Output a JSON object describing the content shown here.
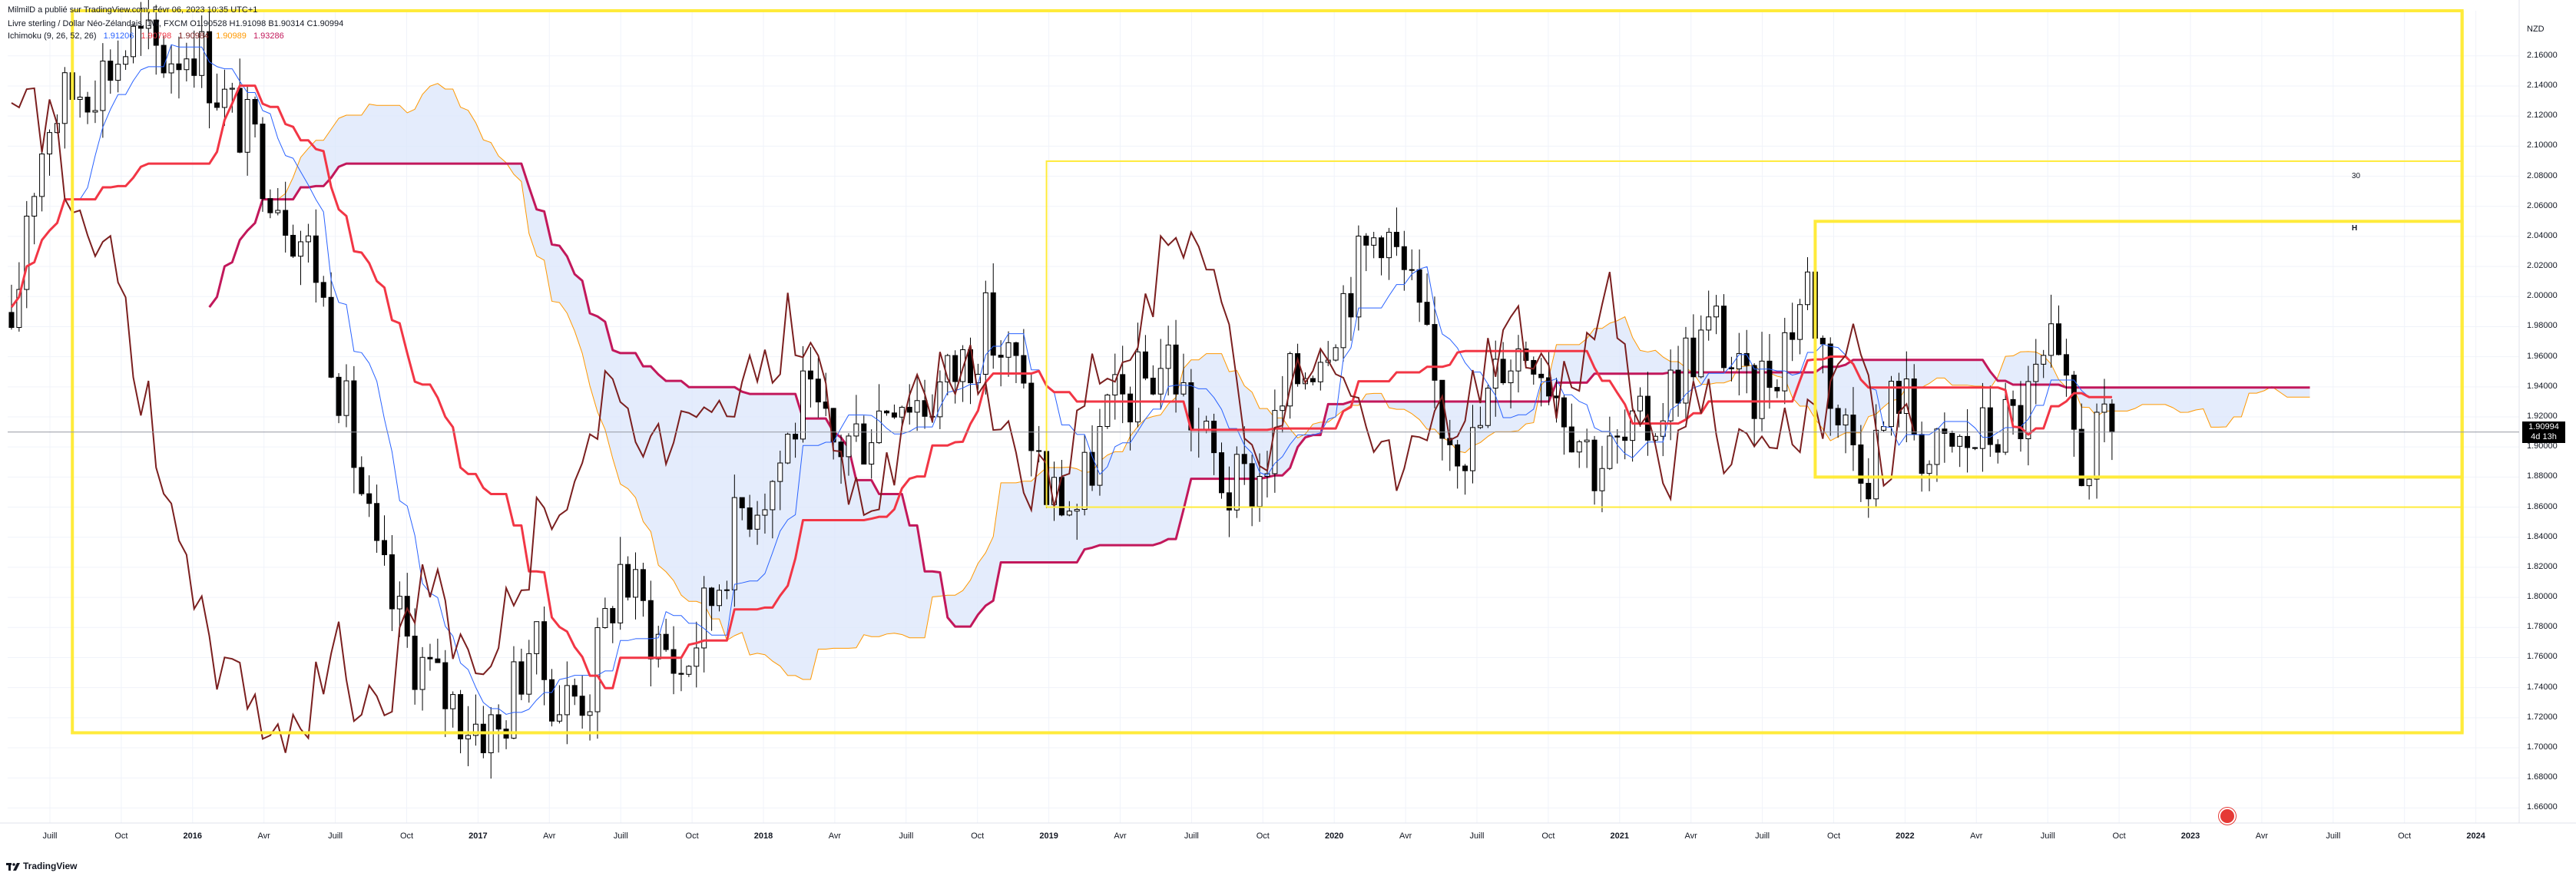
{
  "header": {
    "publisher_line": "MilmilD a publié sur TradingView.com, Févr 06, 2023 10:35 UTC+1",
    "symbol_line": "Livre sterling / Dollar Néo-Zélandais, 1W, FXCM  O1.90528  H1.91098  B1.90314  C1.90994",
    "ichimoku_label": "Ichimoku (9, 26, 52, 26)",
    "ichimoku_values": [
      "1.91206",
      "1.90798",
      "1.90984",
      "1.90989",
      "1.93286"
    ]
  },
  "currency": "NZD",
  "current_price": {
    "value": "1.90994",
    "countdown": "4d 13h"
  },
  "footer": {
    "brand": "TradingView"
  },
  "event_icon": "event-flag-icon",
  "marker_labels": {
    "upper": "30",
    "high": "H"
  },
  "colors": {
    "background": "#ffffff",
    "grid": "#f0f3fa",
    "up_candle": "#ffffff",
    "down_candle": "#000000",
    "tenkan": "#2962ff",
    "kijun": "#f23645",
    "chikou": "#7b1f1f",
    "senkou_a": "#ff9800",
    "senkou_b": "#c2185b",
    "cloud": "#dbe6fb",
    "box": "#ffeb3b",
    "current_line": "#9598a1"
  },
  "chart_data": {
    "type": "candlestick",
    "symbol": "GBPNZD",
    "timeframe": "1W",
    "ylim": [
      1.65,
      2.19
    ],
    "y_ticks": [
      "2.16000",
      "2.14000",
      "2.12000",
      "2.10000",
      "2.08000",
      "2.06000",
      "2.04000",
      "2.02000",
      "2.00000",
      "1.98000",
      "1.96000",
      "1.94000",
      "1.92000",
      "1.90000",
      "1.88000",
      "1.86000",
      "1.84000",
      "1.82000",
      "1.80000",
      "1.78000",
      "1.76000",
      "1.74000",
      "1.72000",
      "1.70000",
      "1.68000",
      "1.66000"
    ],
    "x_ticks": [
      {
        "label": "Juill",
        "bold": false
      },
      {
        "label": "Oct",
        "bold": false
      },
      {
        "label": "2016",
        "bold": true
      },
      {
        "label": "Avr",
        "bold": false
      },
      {
        "label": "Juill",
        "bold": false
      },
      {
        "label": "Oct",
        "bold": false
      },
      {
        "label": "2017",
        "bold": true
      },
      {
        "label": "Avr",
        "bold": false
      },
      {
        "label": "Juill",
        "bold": false
      },
      {
        "label": "Oct",
        "bold": false
      },
      {
        "label": "2018",
        "bold": true
      },
      {
        "label": "Avr",
        "bold": false
      },
      {
        "label": "Juill",
        "bold": false
      },
      {
        "label": "Oct",
        "bold": false
      },
      {
        "label": "2019",
        "bold": true
      },
      {
        "label": "Avr",
        "bold": false
      },
      {
        "label": "Juill",
        "bold": false
      },
      {
        "label": "Oct",
        "bold": false
      },
      {
        "label": "2020",
        "bold": true
      },
      {
        "label": "Avr",
        "bold": false
      },
      {
        "label": "Juill",
        "bold": false
      },
      {
        "label": "Oct",
        "bold": false
      },
      {
        "label": "2021",
        "bold": true
      },
      {
        "label": "Avr",
        "bold": false
      },
      {
        "label": "Juill",
        "bold": false
      },
      {
        "label": "Oct",
        "bold": false
      },
      {
        "label": "2022",
        "bold": true
      },
      {
        "label": "Avr",
        "bold": false
      },
      {
        "label": "Juill",
        "bold": false
      },
      {
        "label": "Oct",
        "bold": false
      },
      {
        "label": "2023",
        "bold": true
      },
      {
        "label": "Avr",
        "bold": false
      },
      {
        "label": "Juill",
        "bold": false
      },
      {
        "label": "Oct",
        "bold": false
      },
      {
        "label": "2024",
        "bold": true
      }
    ],
    "close_anchors": [
      [
        0,
        1.96
      ],
      [
        2,
        2.06
      ],
      [
        5,
        2.12
      ],
      [
        9,
        2.14
      ],
      [
        12,
        2.15
      ],
      [
        16,
        2.17
      ],
      [
        20,
        2.16
      ],
      [
        24,
        2.17
      ],
      [
        28,
        2.13
      ],
      [
        32,
        2.1
      ],
      [
        36,
        2.06
      ],
      [
        40,
        2.02
      ],
      [
        44,
        1.92
      ],
      [
        48,
        1.82
      ],
      [
        52,
        1.77
      ],
      [
        56,
        1.74
      ],
      [
        60,
        1.72
      ],
      [
        64,
        1.71
      ],
      [
        68,
        1.77
      ],
      [
        72,
        1.73
      ],
      [
        76,
        1.74
      ],
      [
        80,
        1.82
      ],
      [
        84,
        1.78
      ],
      [
        88,
        1.75
      ],
      [
        92,
        1.8
      ],
      [
        96,
        1.86
      ],
      [
        100,
        1.88
      ],
      [
        104,
        1.93
      ],
      [
        108,
        1.9
      ],
      [
        112,
        1.91
      ],
      [
        116,
        1.94
      ],
      [
        120,
        1.93
      ],
      [
        124,
        1.95
      ],
      [
        128,
        1.98
      ],
      [
        132,
        1.95
      ],
      [
        136,
        1.87
      ],
      [
        140,
        1.86
      ],
      [
        144,
        1.92
      ],
      [
        148,
        1.94
      ],
      [
        152,
        1.96
      ],
      [
        156,
        1.91
      ],
      [
        160,
        1.87
      ],
      [
        164,
        1.88
      ],
      [
        168,
        1.94
      ],
      [
        172,
        1.97
      ],
      [
        176,
        2.01
      ],
      [
        180,
        2.05
      ],
      [
        184,
        2.0
      ],
      [
        188,
        1.92
      ],
      [
        192,
        1.9
      ],
      [
        196,
        1.96
      ],
      [
        200,
        1.97
      ],
      [
        204,
        1.93
      ],
      [
        208,
        1.89
      ],
      [
        212,
        1.9
      ],
      [
        216,
        1.92
      ],
      [
        220,
        1.96
      ],
      [
        224,
        1.98
      ],
      [
        228,
        1.93
      ],
      [
        232,
        1.96
      ],
      [
        236,
        2.01
      ],
      [
        240,
        1.92
      ],
      [
        244,
        1.89
      ],
      [
        248,
        1.94
      ],
      [
        252,
        1.89
      ],
      [
        256,
        1.9
      ],
      [
        260,
        1.91
      ],
      [
        264,
        1.92
      ],
      [
        268,
        1.96
      ],
      [
        272,
        1.89
      ],
      [
        276,
        1.91
      ]
    ],
    "series_names": [
      "Tenkan",
      "Kijun",
      "Chikou",
      "Senkou A",
      "Senkou B"
    ],
    "annotations": [
      {
        "type": "rectangle",
        "x0": 8,
        "x1": 322,
        "y0": 1.71,
        "y1": 2.19
      },
      {
        "type": "rectangle",
        "x0": 136,
        "x1": 322,
        "y0": 1.86,
        "y1": 2.09
      },
      {
        "type": "rectangle",
        "x0": 237,
        "x1": 322,
        "y0": 1.88,
        "y1": 2.05
      },
      {
        "type": "vline",
        "x": 322
      }
    ],
    "last_close": 1.90994,
    "grid": true
  }
}
